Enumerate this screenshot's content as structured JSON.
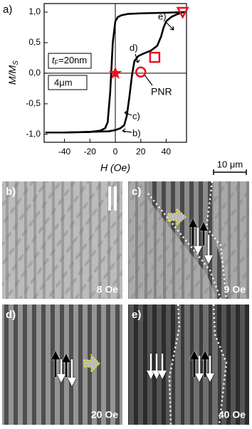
{
  "chart_data": {
    "type": "line",
    "panel_label": "a)",
    "xlabel": "H (Oe)",
    "ylabel_main": "M/M",
    "ylabel_sub": "S",
    "xlim": [
      -56,
      56
    ],
    "ylim": [
      -1.13,
      1.14
    ],
    "xticks": [
      -40,
      -20,
      0,
      20,
      40
    ],
    "yticks": [
      {
        "value": -1,
        "label": "-1,0"
      },
      {
        "value": -0.5,
        "label": "-0,5"
      },
      {
        "value": 0,
        "label": "0,0"
      },
      {
        "value": 0.5,
        "label": "0,5"
      },
      {
        "value": 1,
        "label": "1,0"
      }
    ],
    "series": [
      {
        "color": "#000000",
        "x": [
          55,
          40,
          20,
          10,
          5,
          2,
          0,
          -2,
          -4,
          -6,
          -8,
          -12,
          -20,
          -40,
          -55
        ],
        "values": [
          1.0,
          0.99,
          0.98,
          0.97,
          0.95,
          0.92,
          0.85,
          0.5,
          -0.3,
          -0.8,
          -0.9,
          -0.94,
          -0.96,
          -0.97,
          -0.97
        ]
      },
      {
        "color": "#000000",
        "x": [
          -55,
          -40,
          -20,
          -5,
          0,
          4,
          7,
          9,
          11,
          13,
          15,
          18,
          22,
          28,
          33,
          36,
          38,
          40,
          44,
          48,
          52,
          55
        ],
        "values": [
          -0.97,
          -0.97,
          -0.96,
          -0.95,
          -0.93,
          -0.9,
          -0.85,
          -0.7,
          -0.4,
          -0.05,
          0.2,
          0.28,
          0.32,
          0.37,
          0.45,
          0.6,
          0.75,
          0.85,
          0.92,
          0.96,
          0.99,
          1.0
        ]
      }
    ],
    "markers": [
      {
        "shape": "star",
        "x": 0,
        "value": 0,
        "color": "#e8141b"
      },
      {
        "shape": "circle",
        "x": 20,
        "value": 0.02,
        "color": "#e8141b"
      },
      {
        "shape": "square",
        "x": 31,
        "value": 0.26,
        "color": "#e8141b"
      },
      {
        "shape": "triangle",
        "x": 53,
        "value": 1.0,
        "color": "#e8141b"
      }
    ],
    "annotations": {
      "thickness_var": "t",
      "thickness_sub": "F",
      "thickness_value": "=20nm",
      "width": "4μm",
      "pnr": "PNR",
      "b": "b)",
      "c": "c)",
      "d": "d)",
      "e": "e)"
    }
  },
  "scale_bar": "10 μm",
  "panels": [
    {
      "label": "b)",
      "field": "8 Oe"
    },
    {
      "label": "c)",
      "field": "9 Oe"
    },
    {
      "label": "d)",
      "field": "20 Oe"
    },
    {
      "label": "e)",
      "field": "40 Oe"
    }
  ]
}
